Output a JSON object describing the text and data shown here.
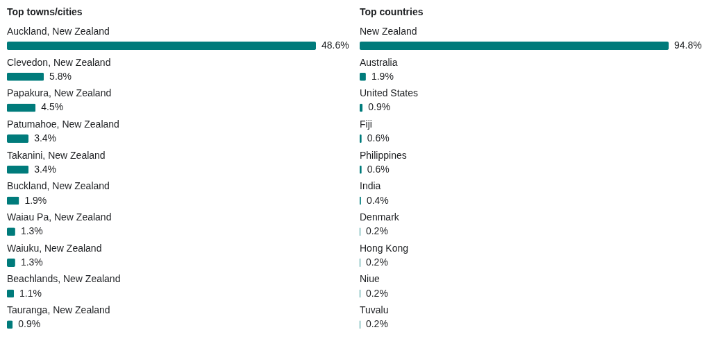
{
  "chart_data": [
    {
      "type": "bar",
      "orientation": "horizontal",
      "title": "Top towns/cities",
      "color": "#007b7b",
      "categories": [
        "Auckland, New Zealand",
        "Clevedon, New Zealand",
        "Papakura, New Zealand",
        "Patumahoe, New Zealand",
        "Takanini, New Zealand",
        "Buckland, New Zealand",
        "Waiau Pa, New Zealand",
        "Waiuku, New Zealand",
        "Beachlands, New Zealand",
        "Tauranga, New Zealand"
      ],
      "values": [
        48.6,
        5.8,
        4.5,
        3.4,
        3.4,
        1.9,
        1.3,
        1.3,
        1.1,
        0.9
      ],
      "value_labels": [
        "48.6%",
        "5.8%",
        "4.5%",
        "3.4%",
        "3.4%",
        "1.9%",
        "1.3%",
        "1.3%",
        "1.1%",
        "0.9%"
      ]
    },
    {
      "type": "bar",
      "orientation": "horizontal",
      "title": "Top countries",
      "color": "#007b7b",
      "categories": [
        "New Zealand",
        "Australia",
        "United States",
        "Fiji",
        "Philippines",
        "India",
        "Denmark",
        "Hong Kong",
        "Niue",
        "Tuvalu"
      ],
      "values": [
        94.8,
        1.9,
        0.9,
        0.6,
        0.6,
        0.4,
        0.2,
        0.2,
        0.2,
        0.2
      ],
      "value_labels": [
        "94.8%",
        "1.9%",
        "0.9%",
        "0.6%",
        "0.6%",
        "0.4%",
        "0.2%",
        "0.2%",
        "0.2%",
        "0.2%"
      ]
    }
  ]
}
